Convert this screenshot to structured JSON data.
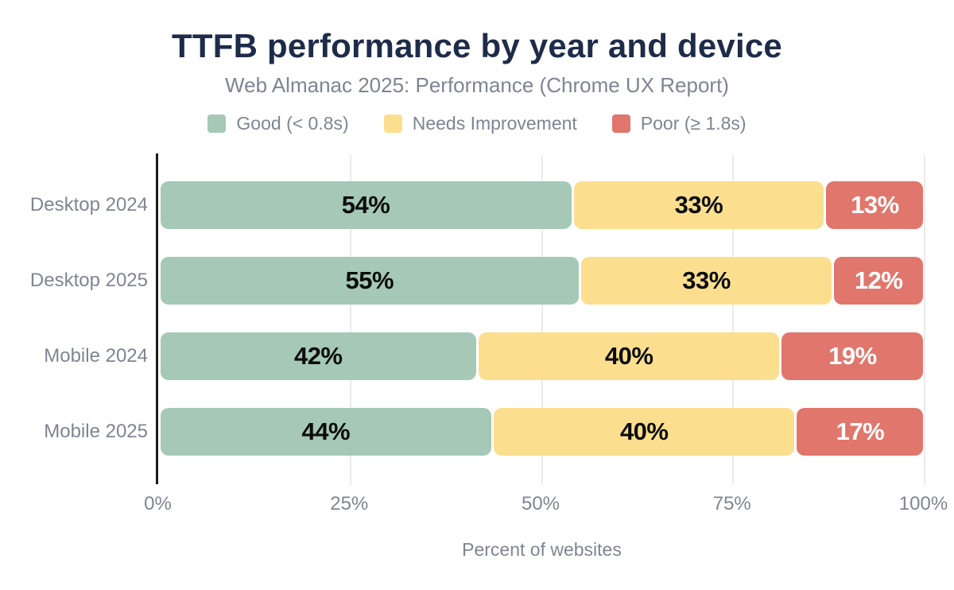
{
  "header": {
    "title": "TTFB performance by year and device",
    "subtitle": "Web Almanac 2025: Performance (Chrome UX Report)"
  },
  "colors": {
    "title": "#1e2b49",
    "secondary_text": "#7d8591",
    "axis_line": "#1b1b1d",
    "gridline": "#ebebeb",
    "good": "#a5c8b7",
    "needs_improvement": "#fbdf8e",
    "poor": "#e0766c"
  },
  "legend": [
    {
      "label": "Good (< 0.8s)",
      "color": "#a5c8b7"
    },
    {
      "label": "Needs Improvement",
      "color": "#fbdf8e"
    },
    {
      "label": "Poor (≥ 1.8s)",
      "color": "#e0766c"
    }
  ],
  "chart_data": {
    "type": "bar",
    "orientation": "horizontal",
    "stacked": true,
    "title": "TTFB performance by year and device",
    "subtitle": "Web Almanac 2025: Performance (Chrome UX Report)",
    "categories": [
      "Desktop 2024",
      "Desktop 2025",
      "Mobile 2024",
      "Mobile 2025"
    ],
    "series": [
      {
        "name": "Good (< 0.8s)",
        "color": "#a5c8b7",
        "values": [
          54,
          55,
          42,
          44
        ],
        "value_label_color": "#0c0c0c"
      },
      {
        "name": "Needs Improvement",
        "color": "#fbdf8e",
        "values": [
          33,
          33,
          40,
          40
        ],
        "value_label_color": "#0c0c0c"
      },
      {
        "name": "Poor (≥ 1.8s)",
        "color": "#e0766c",
        "values": [
          13,
          12,
          19,
          17
        ],
        "value_label_color": "#ffffff"
      }
    ],
    "value_suffix": "%",
    "xlabel": "Percent of websites",
    "xlim": [
      0,
      100
    ],
    "x_ticks": [
      {
        "label": "0%",
        "value": 0
      },
      {
        "label": "25%",
        "value": 25
      },
      {
        "label": "50%",
        "value": 50
      },
      {
        "label": "75%",
        "value": 75
      },
      {
        "label": "100%",
        "value": 100
      }
    ],
    "grid": true,
    "legend_position": "top"
  }
}
